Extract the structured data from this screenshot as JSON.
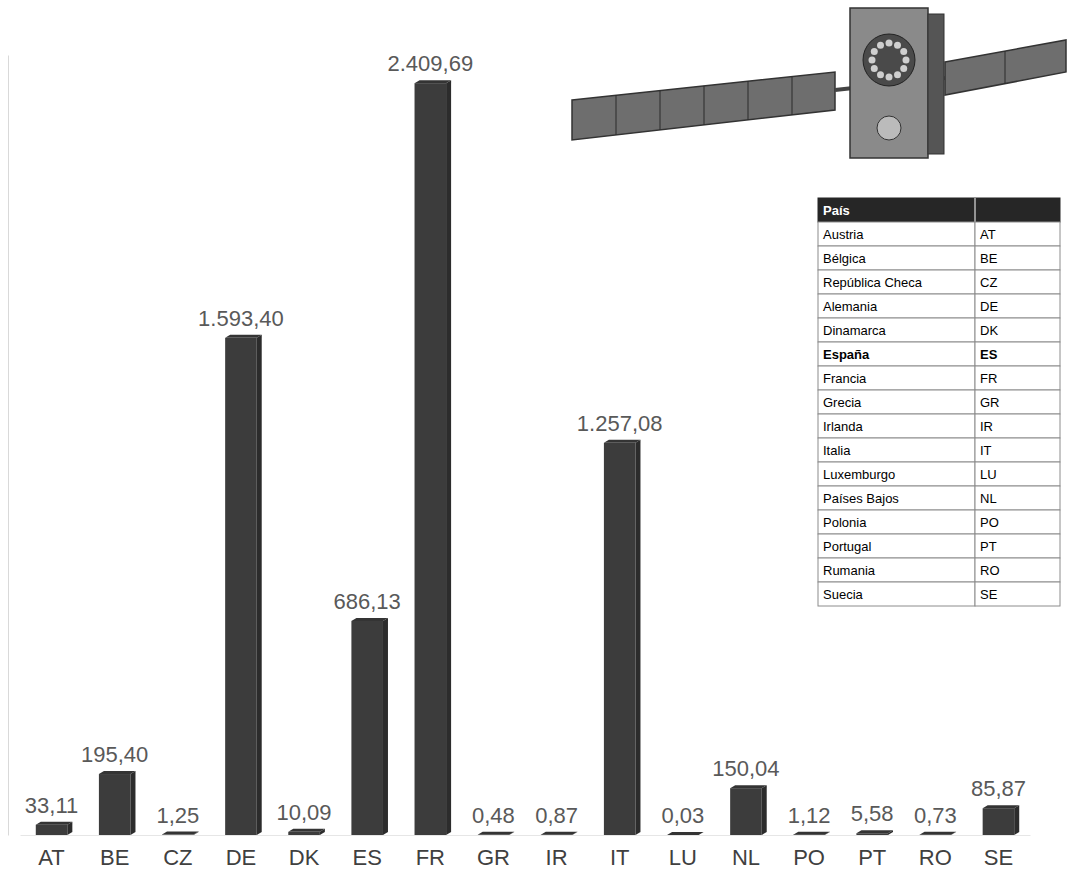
{
  "chart_data": {
    "type": "bar",
    "categories": [
      "AT",
      "BE",
      "CZ",
      "DE",
      "DK",
      "ES",
      "FR",
      "GR",
      "IR",
      "IT",
      "LU",
      "NL",
      "PO",
      "PT",
      "RO",
      "SE"
    ],
    "values": [
      33.11,
      195.4,
      1.25,
      1593.4,
      10.09,
      686.13,
      2409.69,
      0.48,
      0.87,
      1257.08,
      0.03,
      150.04,
      1.12,
      5.58,
      0.73,
      85.87
    ],
    "value_labels": [
      "33,11",
      "195,40",
      "1,25",
      "1.593,40",
      "10,09",
      "686,13",
      "2.409,69",
      "0,48",
      "0,87",
      "1.257,08",
      "0,03",
      "150,04",
      "1,12",
      "5,58",
      "0,73",
      "85,87"
    ],
    "color": "#3c3c3c",
    "ylim": [
      0,
      2500
    ],
    "data_labels": true,
    "tick_labels": "x",
    "grid": false
  },
  "legend_table": {
    "header": "País",
    "rows": [
      [
        "Austria",
        "AT"
      ],
      [
        "Bélgica",
        "BE"
      ],
      [
        "República Checa",
        "CZ"
      ],
      [
        "Alemania",
        "DE"
      ],
      [
        "Dinamarca",
        "DK"
      ],
      [
        "España",
        "ES"
      ],
      [
        "Francia",
        "FR"
      ],
      [
        "Grecia",
        "GR"
      ],
      [
        "Irlanda",
        "IR"
      ],
      [
        "Italia",
        "IT"
      ],
      [
        "Luxemburgo",
        "LU"
      ],
      [
        "Países Bajos",
        "NL"
      ],
      [
        "Polonia",
        "PO"
      ],
      [
        "Portugal",
        "PT"
      ],
      [
        "Rumania",
        "RO"
      ],
      [
        "Suecia",
        "SE"
      ]
    ],
    "highlight": "ES"
  }
}
